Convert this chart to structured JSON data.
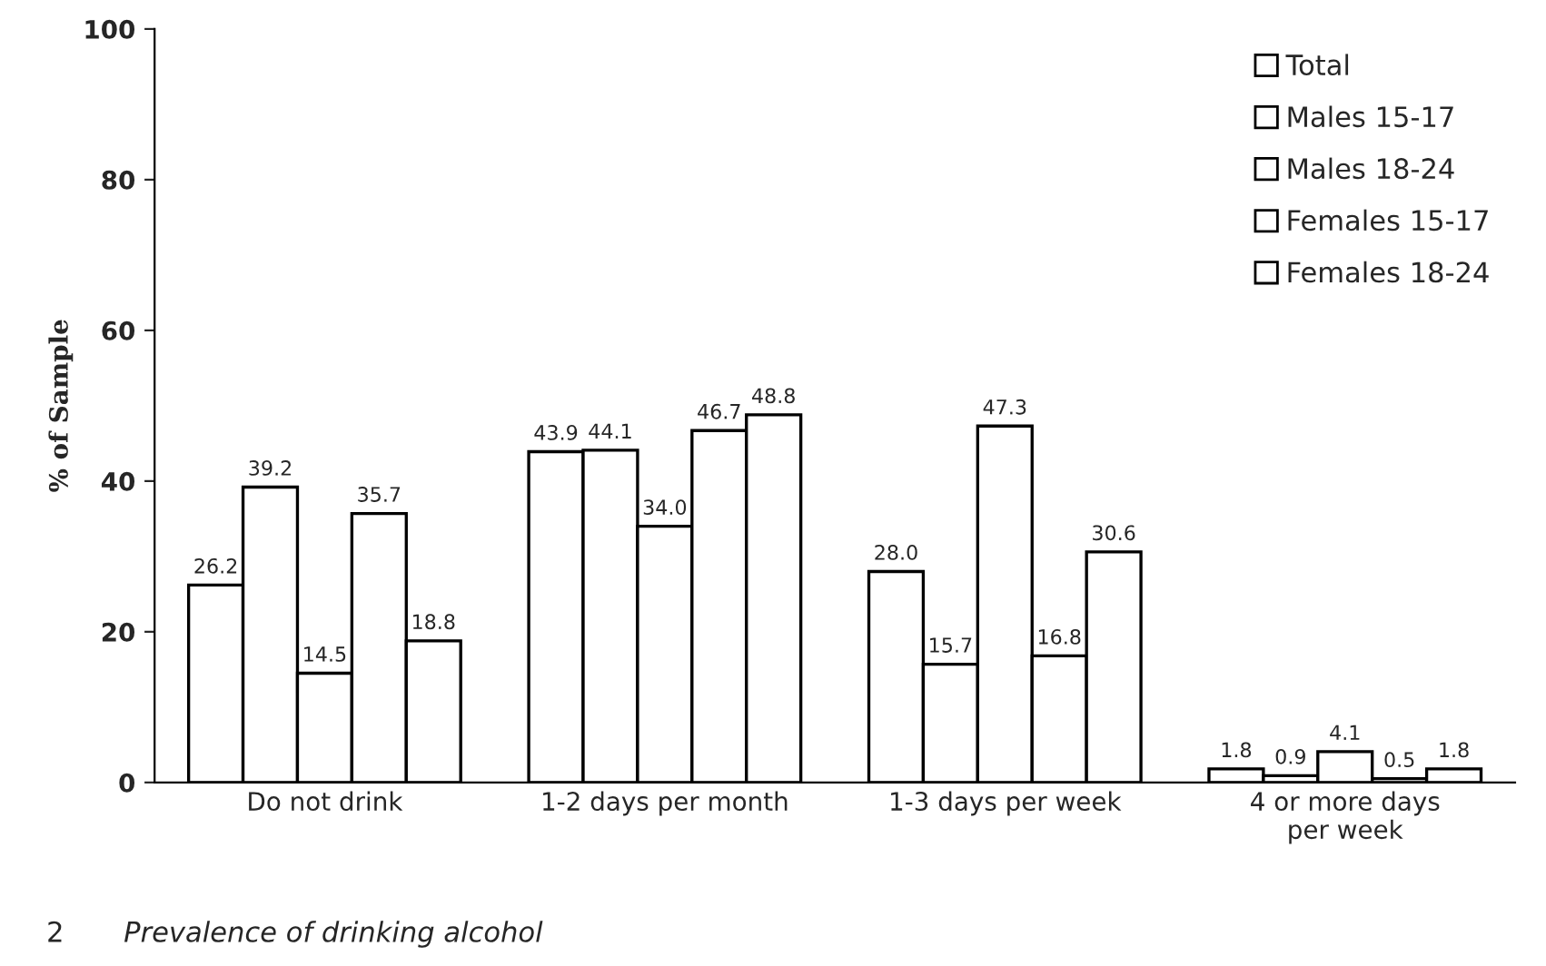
{
  "chart_data": {
    "type": "bar",
    "ylabel": "% of Sample",
    "categories": [
      "Do not drink",
      "1-2 days per month",
      "1-3 days per week",
      "4 or more days\nper week"
    ],
    "series": [
      {
        "name": "Total",
        "color": "#ffffff",
        "values": [
          26.2,
          43.9,
          28.0,
          1.8
        ],
        "value_labels": [
          "26.2",
          "43.9",
          "28.0",
          "1.8"
        ]
      },
      {
        "name": "Males 15-17",
        "color": "#ffffff",
        "values": [
          39.2,
          44.1,
          15.7,
          0.9
        ],
        "value_labels": [
          "39.2",
          "44.1",
          "15.7",
          "0.9"
        ]
      },
      {
        "name": "Males 18-24",
        "color": "#ffffff",
        "values": [
          14.5,
          34.0,
          47.3,
          4.1
        ],
        "value_labels": [
          "14.5",
          "34.0",
          "47.3",
          "4.1"
        ]
      },
      {
        "name": "Females 15-17",
        "color": "#ffffff",
        "values": [
          35.7,
          46.7,
          16.8,
          0.5
        ],
        "value_labels": [
          "35.7",
          "46.7",
          "16.8",
          "0.5"
        ]
      },
      {
        "name": "Females 18-24",
        "color": "#ffffff",
        "values": [
          18.8,
          48.8,
          30.6,
          1.8
        ],
        "value_labels": [
          "18.8",
          "48.8",
          "30.6",
          "1.8"
        ]
      }
    ],
    "ylim": [
      0,
      100
    ],
    "yticks": [
      0,
      20,
      40,
      60,
      80,
      100
    ],
    "grid": false,
    "legend": "top right",
    "annotations": [
      "2",
      "Prevalence of drinking alcohol"
    ]
  }
}
